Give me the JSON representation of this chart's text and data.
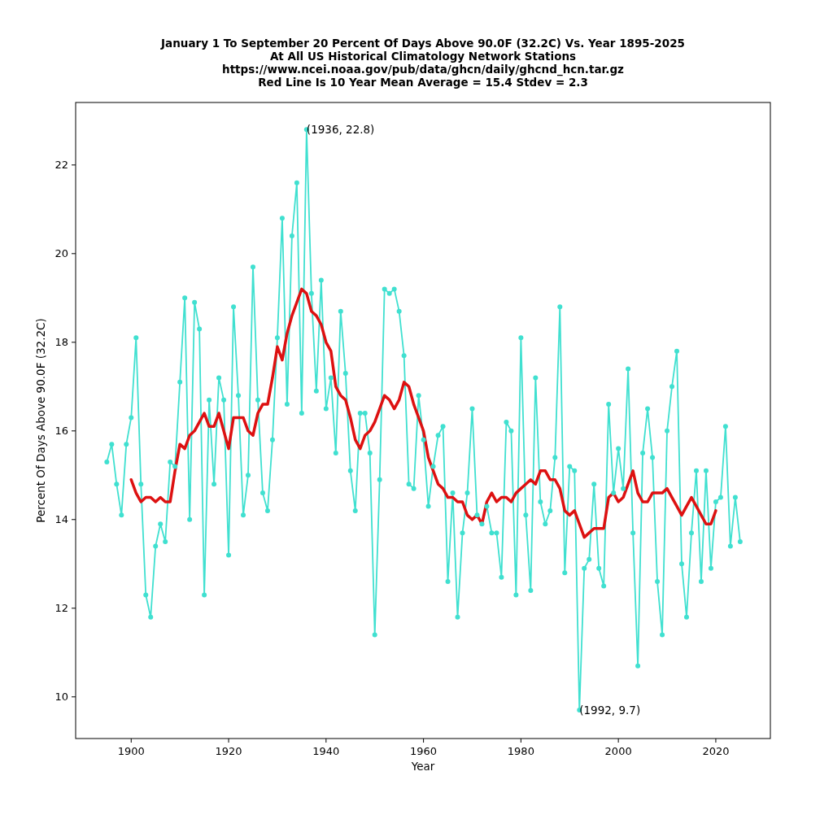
{
  "chart_data": {
    "type": "line",
    "title": "January 1 To September 20 Percent Of Days Above 90.0F (32.2C) Vs. Year 1895-2025\nAt All US Historical Climatology Network Stations\nhttps://www.ncei.noaa.gov/pub/data/ghcn/daily/ghcnd_hcn.tar.gz\nRed Line Is 10 Year Mean  Average = 15.4 Stdev = 2.3",
    "xlabel": "Year",
    "ylabel": "Percent Of Days Above 90.0F (32.2C)",
    "xlim": [
      1888.6,
      2031.2
    ],
    "xticks": [
      1900,
      1920,
      1940,
      1960,
      1980,
      2000,
      2020
    ],
    "ylim": [
      9.06,
      23.41
    ],
    "yticks": [
      10,
      12,
      14,
      16,
      18,
      20,
      22
    ],
    "grid": false,
    "annotations": [
      {
        "text": "(1936, 22.8)",
        "x": 1936,
        "y": 22.8
      },
      {
        "text": "(1992, 9.7)",
        "x": 1992,
        "y": 9.7
      }
    ],
    "series": [
      {
        "color": "#40e0d0",
        "marker": "circle",
        "x": [
          1895,
          1896,
          1897,
          1898,
          1899,
          1900,
          1901,
          1902,
          1903,
          1904,
          1905,
          1906,
          1907,
          1908,
          1909,
          1910,
          1911,
          1912,
          1913,
          1914,
          1915,
          1916,
          1917,
          1918,
          1919,
          1920,
          1921,
          1922,
          1923,
          1924,
          1925,
          1926,
          1927,
          1928,
          1929,
          1930,
          1931,
          1932,
          1933,
          1934,
          1935,
          1936,
          1937,
          1938,
          1939,
          1940,
          1941,
          1942,
          1943,
          1944,
          1945,
          1946,
          1947,
          1948,
          1949,
          1950,
          1951,
          1952,
          1953,
          1954,
          1955,
          1956,
          1957,
          1958,
          1959,
          1960,
          1961,
          1962,
          1963,
          1964,
          1965,
          1966,
          1967,
          1968,
          1969,
          1970,
          1971,
          1972,
          1973,
          1974,
          1975,
          1976,
          1977,
          1978,
          1979,
          1980,
          1981,
          1982,
          1983,
          1984,
          1985,
          1986,
          1987,
          1988,
          1989,
          1990,
          1991,
          1992,
          1993,
          1994,
          1995,
          1996,
          1997,
          1998,
          1999,
          2000,
          2001,
          2002,
          2003,
          2004,
          2005,
          2006,
          2007,
          2008,
          2009,
          2010,
          2011,
          2012,
          2013,
          2014,
          2015,
          2016,
          2017,
          2018,
          2019,
          2020,
          2021,
          2022,
          2023,
          2024,
          2025
        ],
        "values": [
          15.3,
          15.7,
          14.8,
          14.1,
          15.7,
          16.3,
          18.1,
          14.8,
          12.3,
          11.8,
          13.4,
          13.9,
          13.5,
          15.3,
          15.2,
          17.1,
          19.0,
          14.0,
          18.9,
          18.3,
          12.3,
          16.7,
          14.8,
          17.2,
          16.7,
          13.2,
          18.8,
          16.8,
          14.1,
          15.0,
          19.7,
          16.7,
          14.6,
          14.2,
          15.8,
          18.1,
          20.8,
          16.6,
          20.4,
          21.6,
          16.4,
          22.8,
          19.1,
          16.9,
          19.4,
          16.5,
          17.2,
          15.5,
          18.7,
          17.3,
          15.1,
          14.2,
          16.4,
          16.4,
          15.5,
          11.4,
          14.9,
          19.2,
          19.1,
          19.2,
          18.7,
          17.7,
          14.8,
          14.7,
          16.8,
          15.8,
          14.3,
          15.2,
          15.9,
          16.1,
          12.6,
          14.6,
          11.8,
          13.7,
          14.6,
          16.5,
          14.1,
          13.9,
          14.3,
          13.7,
          13.7,
          12.7,
          16.2,
          16.0,
          12.3,
          18.1,
          14.1,
          12.4,
          17.2,
          14.4,
          13.9,
          14.2,
          15.4,
          18.8,
          12.8,
          15.2,
          15.1,
          9.7,
          12.9,
          13.1,
          14.8,
          12.9,
          12.5,
          16.6,
          14.6,
          15.6,
          14.7,
          17.4,
          13.7,
          10.7,
          15.5,
          16.5,
          15.4,
          12.6,
          11.4,
          16.0,
          17.0,
          17.8,
          13.0,
          11.8,
          13.7,
          15.1,
          12.6,
          15.1,
          12.9,
          14.4,
          14.5,
          16.1,
          13.4,
          14.5,
          13.5
        ]
      },
      {
        "color": "#dd1111",
        "marker": "none",
        "x": [
          1900,
          1901,
          1902,
          1903,
          1904,
          1905,
          1906,
          1907,
          1908,
          1909,
          1910,
          1911,
          1912,
          1913,
          1914,
          1915,
          1916,
          1917,
          1918,
          1919,
          1920,
          1921,
          1922,
          1923,
          1924,
          1925,
          1926,
          1927,
          1928,
          1929,
          1930,
          1931,
          1932,
          1933,
          1934,
          1935,
          1936,
          1937,
          1938,
          1939,
          1940,
          1941,
          1942,
          1943,
          1944,
          1945,
          1946,
          1947,
          1948,
          1949,
          1950,
          1951,
          1952,
          1953,
          1954,
          1955,
          1956,
          1957,
          1958,
          1959,
          1960,
          1961,
          1962,
          1963,
          1964,
          1965,
          1966,
          1967,
          1968,
          1969,
          1970,
          1971,
          1972,
          1973,
          1974,
          1975,
          1976,
          1977,
          1978,
          1979,
          1980,
          1981,
          1982,
          1983,
          1984,
          1985,
          1986,
          1987,
          1988,
          1989,
          1990,
          1991,
          1992,
          1993,
          1994,
          1995,
          1996,
          1997,
          1998,
          1999,
          2000,
          2001,
          2002,
          2003,
          2004,
          2005,
          2006,
          2007,
          2008,
          2009,
          2010,
          2011,
          2012,
          2013,
          2014,
          2015,
          2016,
          2017,
          2018,
          2019,
          2020
        ],
        "values": [
          14.9,
          14.6,
          14.4,
          14.5,
          14.5,
          14.4,
          14.5,
          14.4,
          14.4,
          15.1,
          15.7,
          15.6,
          15.9,
          16.0,
          16.2,
          16.4,
          16.1,
          16.1,
          16.4,
          16.0,
          15.6,
          16.3,
          16.3,
          16.3,
          16.0,
          15.9,
          16.4,
          16.6,
          16.6,
          17.2,
          17.9,
          17.6,
          18.2,
          18.6,
          18.9,
          19.2,
          19.1,
          18.7,
          18.6,
          18.4,
          18.0,
          17.8,
          17.0,
          16.8,
          16.7,
          16.3,
          15.8,
          15.6,
          15.9,
          16.0,
          16.2,
          16.5,
          16.8,
          16.7,
          16.5,
          16.7,
          17.1,
          17.0,
          16.6,
          16.3,
          16.0,
          15.4,
          15.1,
          14.8,
          14.7,
          14.5,
          14.5,
          14.4,
          14.4,
          14.1,
          14.0,
          14.1,
          13.9,
          14.4,
          14.6,
          14.4,
          14.5,
          14.5,
          14.4,
          14.6,
          14.7,
          14.8,
          14.9,
          14.8,
          15.1,
          15.1,
          14.9,
          14.9,
          14.7,
          14.2,
          14.1,
          14.2,
          13.9,
          13.6,
          13.7,
          13.8,
          13.8,
          13.8,
          14.5,
          14.6,
          14.4,
          14.5,
          14.8,
          15.1,
          14.6,
          14.4,
          14.4,
          14.6,
          14.6,
          14.6,
          14.7,
          14.5,
          14.3,
          14.1,
          14.3,
          14.5,
          14.3,
          14.1,
          13.9,
          13.9,
          14.2
        ]
      }
    ]
  }
}
